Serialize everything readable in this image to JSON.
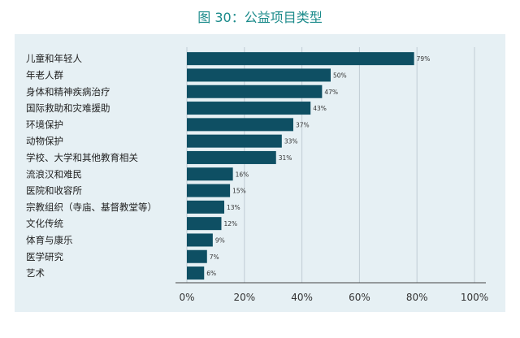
{
  "title": "图 30：公益项目类型",
  "chart_data": {
    "type": "bar",
    "orientation": "horizontal",
    "title": "图 30：公益项目类型",
    "xlabel": "",
    "ylabel": "",
    "xlim": [
      0,
      100
    ],
    "xticks": [
      0,
      20,
      40,
      60,
      80,
      100
    ],
    "xtick_labels": [
      "0%",
      "20%",
      "40%",
      "60%",
      "80%",
      "100%"
    ],
    "grid": true,
    "categories": [
      "儿童和年轻人",
      "年老人群",
      "身体和精神疾病治疗",
      "国际救助和灾难援助",
      "环境保护",
      "动物保护",
      "学校、大学和其他教育相关",
      "流浪汉和难民",
      "医院和收容所",
      "宗教组织（寺庙、基督教堂等）",
      "文化传统",
      "体育与康乐",
      "医学研究",
      "艺术"
    ],
    "values": [
      79,
      50,
      47,
      43,
      37,
      33,
      31,
      16,
      15,
      13,
      12,
      9,
      7,
      6
    ],
    "value_labels": [
      "79%",
      "50%",
      "47%",
      "43%",
      "37%",
      "33%",
      "31%",
      "16%",
      "15%",
      "13%",
      "12%",
      "9%",
      "7%",
      "6%"
    ],
    "bar_color": "#0e4f63",
    "grid_color": "#c0ccd4",
    "background_color": "#e6f0f4",
    "title_color": "#1a8a8a"
  }
}
